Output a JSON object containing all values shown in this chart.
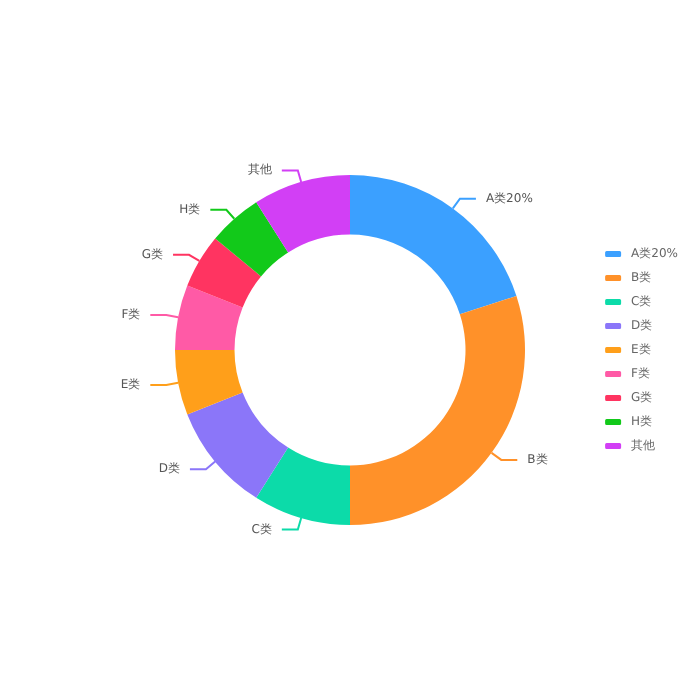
{
  "chart_data": {
    "type": "donut",
    "categories": [
      "A类20%",
      "B类",
      "C类",
      "D类",
      "E类",
      "F类",
      "G类",
      "H类",
      "其他"
    ],
    "values": [
      20,
      30,
      9,
      10,
      6,
      6,
      5,
      5,
      9
    ],
    "colors": [
      "#3ba0ff",
      "#ff9129",
      "#0cdba9",
      "#8b76f9",
      "#ff9f1a",
      "#ff5aa6",
      "#ff3461",
      "#12c91a",
      "#d23ff5"
    ],
    "legend": "right"
  }
}
